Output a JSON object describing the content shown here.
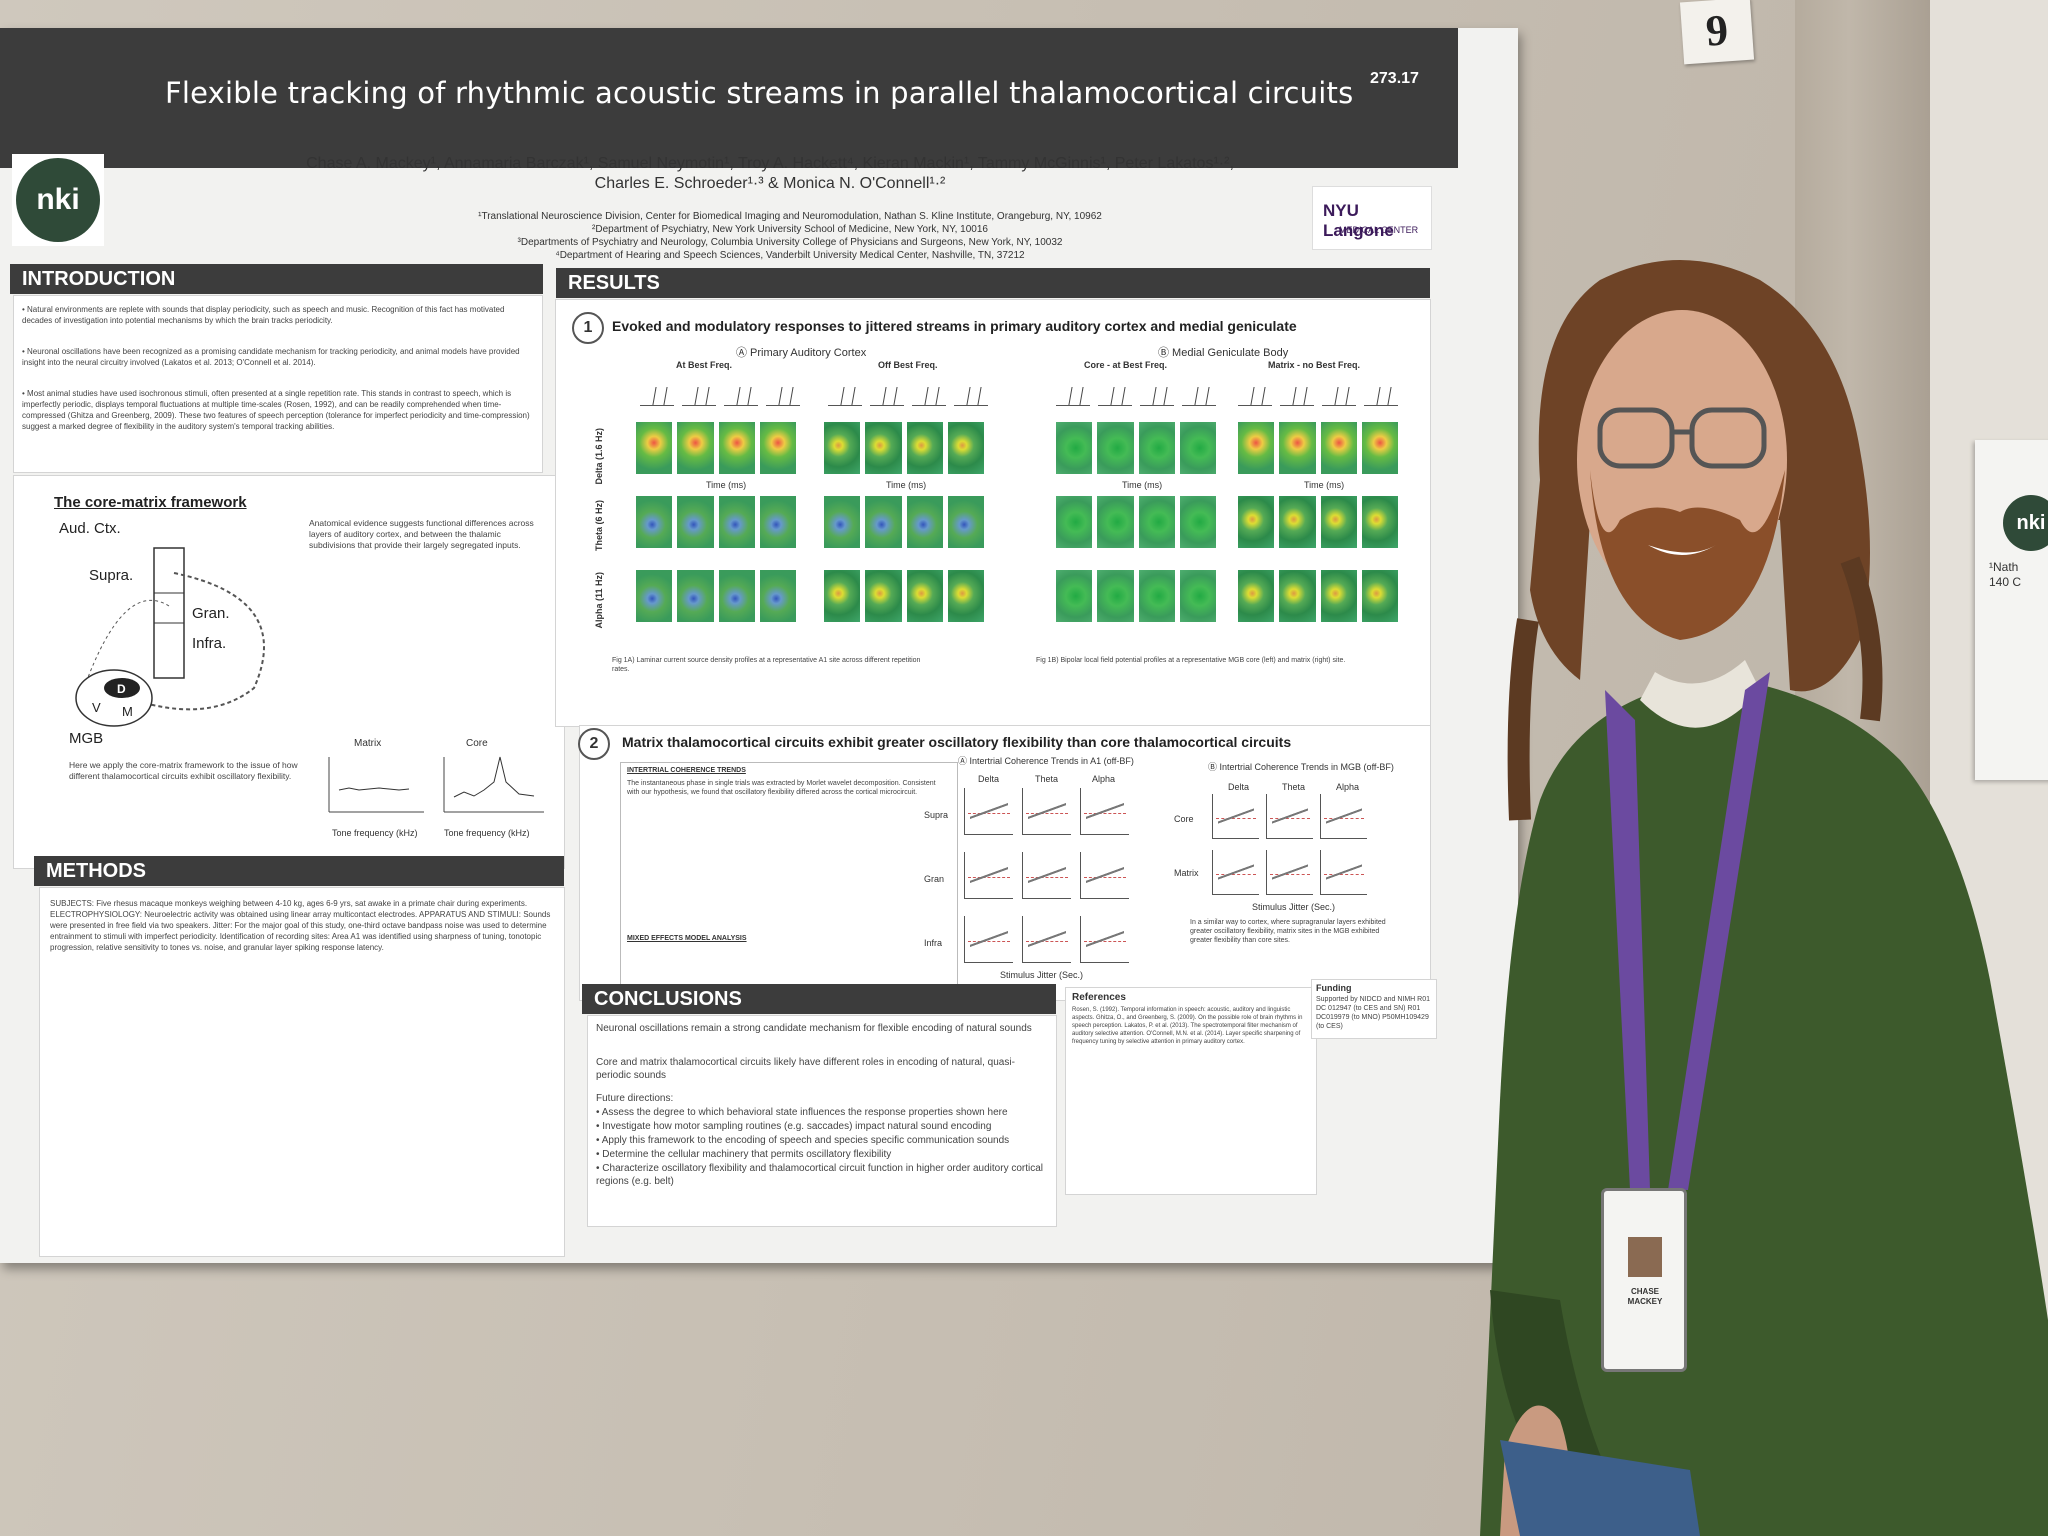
{
  "poster": {
    "title": "Flexible tracking of rhythmic acoustic streams in parallel thalamocortical circuits",
    "abstract_number": "273.17",
    "authors_line1": "Chase A. Mackey¹, Annamaria Barczak¹, Samuel Neymotin¹, Troy A. Hackett⁴, Kieran Mackin¹, Tammy McGinnis¹, Peter Lakatos¹·²,",
    "authors_line2": "Charles E. Schroeder¹·³ & Monica N. O'Connell¹·²",
    "affiliation1": "¹Translational Neuroscience Division, Center for Biomedical Imaging and Neuromodulation, Nathan S. Kline Institute, Orangeburg, NY, 10962",
    "affiliation2": "²Department of Psychiatry, New York University School of Medicine, New York, NY, 10016",
    "affiliation3": "³Departments of Psychiatry and Neurology, Columbia University College of Physicians and Surgeons, New York, NY, 10032",
    "affiliation4": "⁴Department of Hearing and Speech Sciences, Vanderbilt University Medical Center, Nashville, TN, 37212",
    "logo_left": "nki",
    "logo_right_line1": "NYU Langone",
    "logo_right_line2": "MEDICAL CENTER",
    "sections": {
      "introduction": "INTRODUCTION",
      "results": "RESULTS",
      "methods": "METHODS",
      "conclusions": "CONCLUSIONS",
      "references": "References",
      "funding": "Funding"
    },
    "intro_text": [
      "• Natural environments are replete with sounds that display periodicity, such as speech and music. Recognition of this fact has motivated decades of investigation into potential mechanisms by which the brain tracks periodicity.",
      "• Neuronal oscillations have been recognized as a promising candidate mechanism for tracking periodicity, and animal models have provided insight into the neural circuitry involved (Lakatos et al. 2013; O'Connell et al. 2014).",
      "• Most animal studies have used isochronous stimuli, often presented at a single repetition rate. This stands in contrast to speech, which is imperfectly periodic, displays temporal fluctuations at multiple time-scales (Rosen, 1992), and can be readily comprehended when time-compressed (Ghitza and Greenberg, 2009). These two features of speech perception (tolerance for imperfect periodicity and time-compression) suggest a marked degree of flexibility in the auditory system's temporal tracking abilities."
    ],
    "framework": {
      "heading": "The core-matrix framework",
      "labels": [
        "Aud. Ctx.",
        "Supra.",
        "Gran.",
        "Infra.",
        "MGB",
        "D",
        "V",
        "M"
      ],
      "plot_titles": [
        "Matrix",
        "Core"
      ],
      "xlabel": "Tone frequency (kHz)"
    },
    "results_fig1": {
      "number": "1",
      "title": "Evoked and modulatory responses to jittered streams in primary auditory cortex and medial geniculate",
      "panel_a": "Ⓐ Primary Auditory Cortex",
      "panel_b": "Ⓑ Medial Geniculate Body",
      "cols": [
        "At Best Freq.",
        "Off Best Freq.",
        "Core - at Best Freq.",
        "Matrix - no Best Freq."
      ],
      "rows": [
        "Delta (1.6 Hz)",
        "Theta (6 Hz)",
        "Alpha (11 Hz)"
      ],
      "xlabel": "Time (ms)"
    },
    "results_fig2": {
      "number": "2",
      "title": "Matrix thalamocortical circuits exhibit greater oscillatory flexibility than core thalamocortical circuits",
      "left": "Ⓐ Intertrial Coherence Trends in A1 (off-BF)",
      "right": "Ⓑ Intertrial Coherence Trends in MGB (off-BF)",
      "bands": [
        "Delta",
        "Theta",
        "Alpha"
      ],
      "layers": [
        "Supra",
        "Gran",
        "Infra"
      ],
      "mgb_rows": [
        "Core",
        "Matrix"
      ],
      "xlabel": "Stimulus Jitter (Sec.)",
      "box_heading": "INTERTRIAL COHERENCE TRENDS",
      "model_heading": "MIXED EFFECTS MODEL ANALYSIS"
    },
    "conclusions_text": [
      "Neuronal oscillations remain a strong candidate mechanism for flexible encoding of natural sounds",
      "Core and matrix thalamocortical circuits likely have different roles in encoding of natural, quasi-periodic sounds",
      "Future directions:",
      "• Assess the degree to which behavioral state influences the response properties shown here",
      "• Investigate how motor sampling routines (e.g. saccades) impact natural sound encoding",
      "• Apply this framework to the encoding of speech and species specific communication sounds",
      "• Determine the cellular machinery that permits oscillatory flexibility",
      "• Characterize oscillatory flexibility and thalamocortical circuit function in higher order auditory cortical regions (e.g. belt)"
    ],
    "funding_text": "Supported by NIDCD and NIMH R01 DC 012947 (to CES and SN) R01 DC019979 (to MNO) P50MH109429 (to CES)"
  },
  "card_number": "9",
  "badge": {
    "line1": "CHASE",
    "line2": "MACKEY"
  },
  "neighbor_poster": {
    "logo": "nki",
    "line1": "¹Nath",
    "line2": "140 C"
  },
  "colors": {
    "title_bar": "#3c3c3c",
    "sweater": "#3d5a2c",
    "lanyard": "#6b4aa0",
    "hair": "#6e4326"
  }
}
